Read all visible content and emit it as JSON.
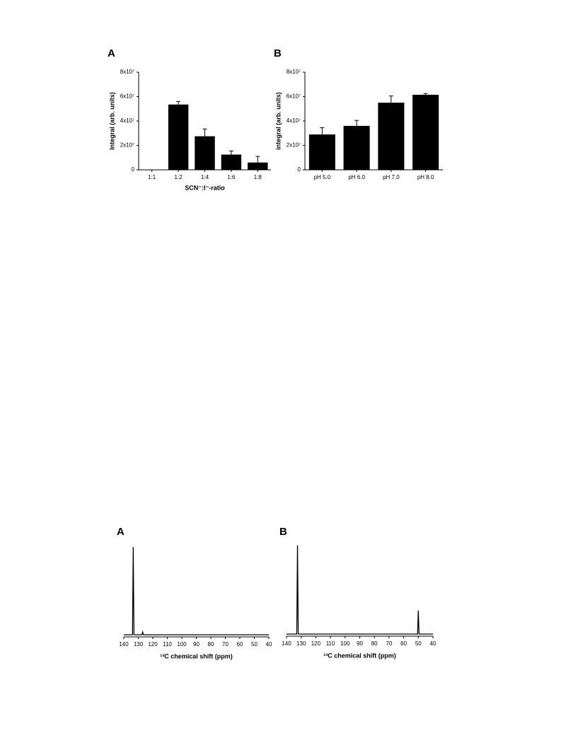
{
  "chart_data": [
    {
      "type": "bar",
      "title": "A",
      "ylabel": "Integral (arb. units)",
      "xlabel": "SCN⁻:I⁻-ratio",
      "categories": [
        "1:1",
        "1:2",
        "1:4",
        "1:6",
        "1:8"
      ],
      "values": [
        0,
        53500000,
        27500000,
        12500000,
        6000000
      ],
      "errors": [
        0,
        2500000,
        6000000,
        3000000,
        5000000
      ],
      "color": "#000000",
      "ylim": [
        0,
        80000000
      ],
      "yticks": [
        0,
        {
          "value": 20000000,
          "label": "2x10⁷"
        },
        {
          "value": 40000000,
          "label": "4x10⁷"
        },
        {
          "value": 60000000,
          "label": "6x10⁷"
        },
        {
          "value": 80000000,
          "label": "8x10⁷"
        }
      ]
    },
    {
      "type": "bar",
      "title": "B",
      "ylabel": "integral (arb. units)",
      "categories": [
        "pH 5.0",
        "pH 6.0",
        "pH 7.0",
        "pH 8.0"
      ],
      "values": [
        29000000,
        36000000,
        55000000,
        61500000
      ],
      "errors": [
        5500000,
        4500000,
        5500000,
        1000000
      ],
      "color": "#000000",
      "ylim": [
        0,
        80000000
      ],
      "yticks": [
        0,
        {
          "value": 20000000,
          "label": "2x10⁷"
        },
        {
          "value": 40000000,
          "label": "4x10⁷"
        },
        {
          "value": 60000000,
          "label": "6x10⁷"
        },
        {
          "value": 80000000,
          "label": "8x10⁷"
        }
      ]
    },
    {
      "type": "line",
      "title": "A",
      "xlabel": "¹³C chemical shift (ppm)",
      "x": [
        140,
        134,
        133.5,
        133,
        127.5,
        127,
        126.5,
        40
      ],
      "values": [
        0,
        0,
        96,
        0,
        0,
        3,
        0,
        0
      ],
      "color": "#000000",
      "xlim": [
        140,
        40
      ],
      "ylim": [
        0,
        100
      ],
      "xticks": [
        140,
        130,
        120,
        110,
        100,
        90,
        80,
        70,
        60,
        50,
        40
      ]
    },
    {
      "type": "line",
      "title": "B",
      "xlabel": "¹³C chemical shift (ppm)",
      "x": [
        140,
        133,
        132.5,
        132,
        50.5,
        50,
        49.5,
        40
      ],
      "values": [
        0,
        0,
        98,
        0,
        0,
        26,
        0,
        0
      ],
      "color": "#000000",
      "xlim": [
        140,
        40
      ],
      "ylim": [
        0,
        100
      ],
      "xticks": [
        140,
        130,
        120,
        110,
        100,
        90,
        80,
        70,
        60,
        50,
        40
      ]
    }
  ]
}
